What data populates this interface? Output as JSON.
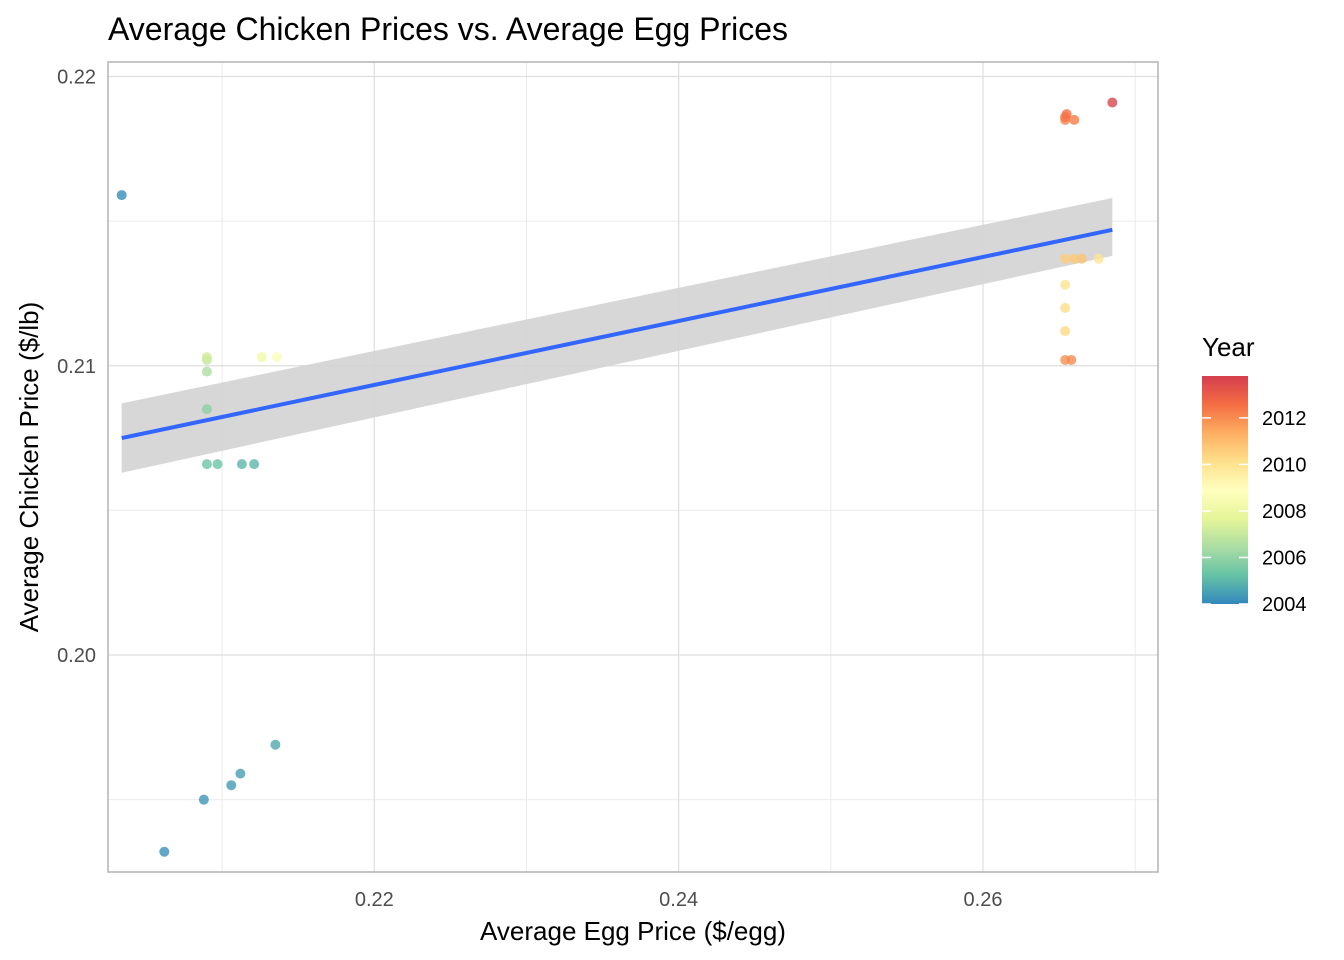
{
  "chart_data": {
    "type": "scatter",
    "title": "Average Chicken Prices vs. Average Egg Prices",
    "xlabel": "Average Egg Price ($/egg)",
    "ylabel": "Average Chicken Price ($/lb)",
    "xlim": [
      0.2025,
      0.2715
    ],
    "ylim": [
      0.1925,
      0.2205
    ],
    "x_ticks": [
      0.22,
      0.24,
      0.26
    ],
    "x_tick_labels": [
      "0.22",
      "0.24",
      "0.26"
    ],
    "y_ticks": [
      0.2,
      0.21,
      0.22
    ],
    "y_tick_labels": [
      "0.20",
      "0.21",
      "0.22"
    ],
    "grid": true,
    "legend": {
      "title": "Year",
      "placement": "right",
      "type": "colorbar",
      "range": [
        2004,
        2013.8
      ],
      "ticks": [
        2004,
        2006,
        2008,
        2010,
        2012
      ],
      "tick_labels": [
        "2004",
        "2006",
        "2008",
        "2010",
        "2012"
      ],
      "palette": [
        "#3288bd",
        "#66c2a5",
        "#abdda4",
        "#e6f598",
        "#ffffbf",
        "#fee08b",
        "#fdae61",
        "#f46d43",
        "#d53e4f"
      ]
    },
    "point_alpha": 0.8,
    "points": [
      {
        "x": 0.2034,
        "y": 0.2159,
        "year": 2004.1
      },
      {
        "x": 0.2062,
        "y": 0.1932,
        "year": 2004.2
      },
      {
        "x": 0.2088,
        "y": 0.195,
        "year": 2004.3
      },
      {
        "x": 0.2106,
        "y": 0.1955,
        "year": 2004.4
      },
      {
        "x": 0.2112,
        "y": 0.1959,
        "year": 2004.5
      },
      {
        "x": 0.2135,
        "y": 0.1969,
        "year": 2004.7
      },
      {
        "x": 0.2113,
        "y": 0.2066,
        "year": 2005.0
      },
      {
        "x": 0.209,
        "y": 0.2066,
        "year": 2005.3
      },
      {
        "x": 0.2097,
        "y": 0.2066,
        "year": 2005.3
      },
      {
        "x": 0.2121,
        "y": 0.2066,
        "year": 2005.0
      },
      {
        "x": 0.209,
        "y": 0.2085,
        "year": 2005.9
      },
      {
        "x": 0.209,
        "y": 0.2098,
        "year": 2006.5
      },
      {
        "x": 0.209,
        "y": 0.2102,
        "year": 2006.9
      },
      {
        "x": 0.209,
        "y": 0.2103,
        "year": 2007.2
      },
      {
        "x": 0.2126,
        "y": 0.2103,
        "year": 2008.2
      },
      {
        "x": 0.2136,
        "y": 0.2103,
        "year": 2008.7
      },
      {
        "x": 0.2654,
        "y": 0.2102,
        "year": 2011.9
      },
      {
        "x": 0.2658,
        "y": 0.2102,
        "year": 2012.0
      },
      {
        "x": 0.2654,
        "y": 0.2112,
        "year": 2010.3
      },
      {
        "x": 0.2654,
        "y": 0.212,
        "year": 2010.2
      },
      {
        "x": 0.2654,
        "y": 0.2128,
        "year": 2010.0
      },
      {
        "x": 0.2654,
        "y": 0.2137,
        "year": 2010.6
      },
      {
        "x": 0.266,
        "y": 0.2137,
        "year": 2010.7
      },
      {
        "x": 0.2665,
        "y": 0.2137,
        "year": 2010.8
      },
      {
        "x": 0.2676,
        "y": 0.2137,
        "year": 2009.9
      },
      {
        "x": 0.2654,
        "y": 0.2185,
        "year": 2012.2
      },
      {
        "x": 0.266,
        "y": 0.2185,
        "year": 2012.3
      },
      {
        "x": 0.2654,
        "y": 0.2186,
        "year": 2012.4
      },
      {
        "x": 0.2655,
        "y": 0.2187,
        "year": 2012.5
      },
      {
        "x": 0.2685,
        "y": 0.2191,
        "year": 2013.6
      }
    ],
    "fit_line": {
      "method": "lm",
      "color": "#3366ff",
      "ribbon_color": "#d3d3d3",
      "x": [
        0.2034,
        0.2685
      ],
      "y": [
        0.2075,
        0.2147
      ],
      "ribbon_lower": [
        0.2063,
        0.2138
      ],
      "ribbon_upper": [
        0.2087,
        0.2158
      ]
    }
  }
}
